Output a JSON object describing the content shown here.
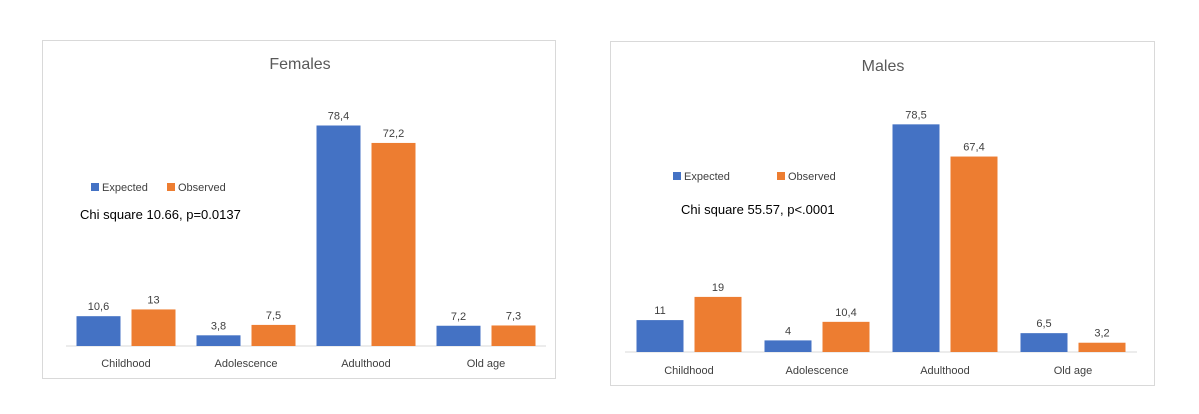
{
  "chart_data": [
    {
      "type": "bar",
      "title": "Females",
      "categories": [
        "Childhood",
        "Adolescence",
        "Adulthood",
        "Old age"
      ],
      "series": [
        {
          "name": "Expected",
          "values": [
            10.6,
            3.8,
            78.4,
            7.2
          ],
          "labels": [
            "10,6",
            "3,8",
            "78,4",
            "7,2"
          ]
        },
        {
          "name": "Observed",
          "values": [
            13,
            7.5,
            72.2,
            7.3
          ],
          "labels": [
            "13",
            "7,5",
            "72,2",
            "7,3"
          ]
        }
      ],
      "annotation": "Chi square 10.66, p=0.0137",
      "legend": "left",
      "grid": false,
      "ylim": [
        0,
        80
      ]
    },
    {
      "type": "bar",
      "title": "Males",
      "categories": [
        "Childhood",
        "Adolescence",
        "Adulthood",
        "Old age"
      ],
      "series": [
        {
          "name": "Expected",
          "values": [
            11,
            4,
            78.5,
            6.5
          ],
          "labels": [
            "11",
            "4",
            "78,5",
            "6,5"
          ]
        },
        {
          "name": "Observed",
          "values": [
            19,
            10.4,
            67.4,
            3.2
          ],
          "labels": [
            "19",
            "10,4",
            "67,4",
            "3,2"
          ]
        }
      ],
      "annotation": "Chi square 55.57, p<.0001",
      "legend": "left",
      "grid": false,
      "ylim": [
        0,
        80
      ]
    }
  ],
  "colors": {
    "expected": "#4472c4",
    "observed": "#ed7d31",
    "axis": "#d9d9d9",
    "title_text": "#595959",
    "label_text": "#404040",
    "annotation_text": "#000000"
  }
}
